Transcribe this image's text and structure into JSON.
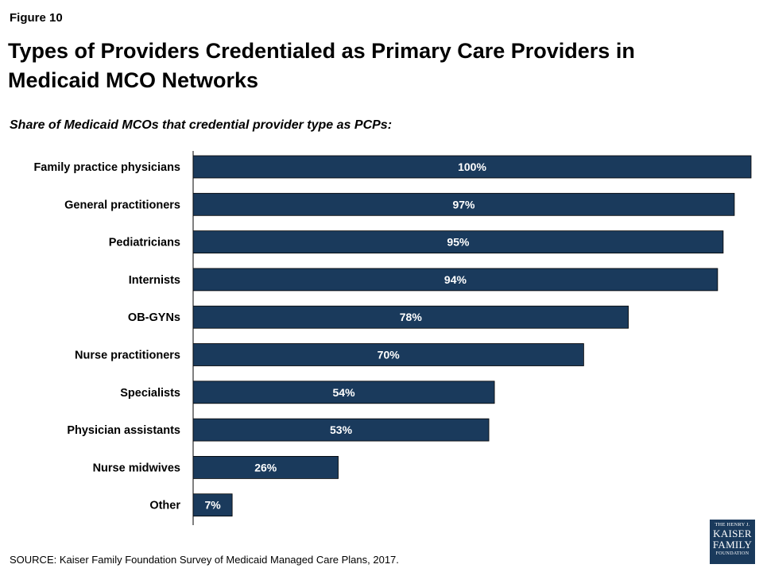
{
  "header": {
    "figure_label": "Figure 10",
    "title": "Types of Providers Credentialed as Primary Care Providers in Medicaid MCO Networks",
    "subtitle": "Share of Medicaid MCOs that credential provider type as PCPs:"
  },
  "chart_data": {
    "type": "bar",
    "orientation": "horizontal",
    "categories": [
      "Family practice physicians",
      "General practitioners",
      "Pediatricians",
      "Internists",
      "OB-GYNs",
      "Nurse practitioners",
      "Specialists",
      "Physician assistants",
      "Nurse midwives",
      "Other"
    ],
    "values": [
      100,
      97,
      95,
      94,
      78,
      70,
      54,
      53,
      26,
      7
    ],
    "value_labels": [
      "100%",
      "97%",
      "95%",
      "94%",
      "78%",
      "70%",
      "54%",
      "53%",
      "26%",
      "7%"
    ],
    "xlim": [
      0,
      100
    ],
    "grid": false,
    "bar_color": "#1a3a5c"
  },
  "footer": {
    "source": "SOURCE: Kaiser Family Foundation Survey of Medicaid Managed Care Plans, 2017.",
    "logo_line1": "THE HENRY J.",
    "logo_line2a": "KAISER",
    "logo_line2b": "FAMILY",
    "logo_line3": "FOUNDATION"
  }
}
